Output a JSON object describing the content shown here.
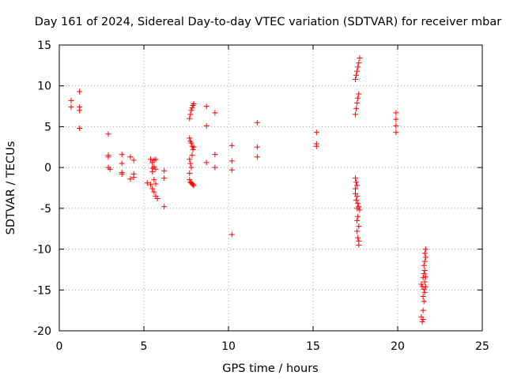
{
  "chart_data": {
    "type": "scatter",
    "title": "Day 161 of 2024, Sidereal Day-to-day VTEC variation (SDTVAR) for receiver mbar",
    "xlabel": "GPS time / hours",
    "ylabel": "SDTVAR / TECUs",
    "xlim": [
      0,
      25
    ],
    "ylim": [
      -20,
      15
    ],
    "xticks": [
      0,
      5,
      10,
      15,
      20,
      25
    ],
    "yticks": [
      -20,
      -15,
      -10,
      -5,
      0,
      5,
      10,
      15
    ],
    "xtick_labels": [
      "0",
      "5",
      "10",
      "15",
      "20",
      "25"
    ],
    "ytick_labels": [
      "-20",
      "-15",
      "-10",
      "-5",
      "0",
      "5",
      "10",
      "15"
    ],
    "grid": true,
    "marker": "+",
    "color": "#ff0000",
    "series": [
      {
        "name": "SDTVAR",
        "points": [
          [
            0.7,
            8.2
          ],
          [
            0.7,
            7.4
          ],
          [
            1.2,
            9.3
          ],
          [
            1.2,
            7.4
          ],
          [
            1.2,
            7.0
          ],
          [
            1.2,
            4.8
          ],
          [
            2.9,
            4.1
          ],
          [
            2.9,
            1.5
          ],
          [
            2.9,
            1.3
          ],
          [
            2.9,
            0.0
          ],
          [
            3.0,
            -0.2
          ],
          [
            3.7,
            1.6
          ],
          [
            3.7,
            0.5
          ],
          [
            3.7,
            -0.6
          ],
          [
            3.7,
            -0.8
          ],
          [
            4.2,
            1.3
          ],
          [
            4.2,
            -1.4
          ],
          [
            4.4,
            0.9
          ],
          [
            4.4,
            -0.8
          ],
          [
            4.4,
            -1.2
          ],
          [
            5.2,
            -1.9
          ],
          [
            5.4,
            -2.1
          ],
          [
            5.4,
            1.0
          ],
          [
            5.5,
            0.6
          ],
          [
            5.5,
            -0.1
          ],
          [
            5.5,
            -0.5
          ],
          [
            5.5,
            -2.6
          ],
          [
            5.6,
            0.9
          ],
          [
            5.6,
            0.1
          ],
          [
            5.6,
            -1.5
          ],
          [
            5.6,
            -3.0
          ],
          [
            5.7,
            1.0
          ],
          [
            5.7,
            -0.2
          ],
          [
            5.7,
            -2.0
          ],
          [
            5.7,
            -3.5
          ],
          [
            5.8,
            -3.8
          ],
          [
            6.2,
            -0.4
          ],
          [
            6.2,
            -1.3
          ],
          [
            6.2,
            -4.8
          ],
          [
            7.7,
            6.0
          ],
          [
            7.7,
            3.6
          ],
          [
            7.7,
            1.0
          ],
          [
            7.7,
            -0.7
          ],
          [
            7.7,
            -1.5
          ],
          [
            7.75,
            6.5
          ],
          [
            7.75,
            3.2
          ],
          [
            7.75,
            0.5
          ],
          [
            7.75,
            -1.8
          ],
          [
            7.8,
            7.0
          ],
          [
            7.8,
            3.0
          ],
          [
            7.8,
            0.0
          ],
          [
            7.8,
            -1.9
          ],
          [
            7.85,
            7.3
          ],
          [
            7.85,
            2.6
          ],
          [
            7.85,
            1.5
          ],
          [
            7.85,
            -2.0
          ],
          [
            7.9,
            7.6
          ],
          [
            7.9,
            2.2
          ],
          [
            7.9,
            -2.1
          ],
          [
            7.95,
            7.8
          ],
          [
            7.95,
            2.5
          ],
          [
            7.95,
            -2.2
          ],
          [
            8.7,
            7.5
          ],
          [
            8.7,
            5.1
          ],
          [
            8.7,
            0.6
          ],
          [
            9.2,
            6.7
          ],
          [
            9.2,
            1.6
          ],
          [
            9.2,
            0.0
          ],
          [
            10.2,
            2.7
          ],
          [
            10.2,
            0.8
          ],
          [
            10.2,
            -0.3
          ],
          [
            10.2,
            -8.2
          ],
          [
            11.7,
            5.5
          ],
          [
            11.7,
            2.5
          ],
          [
            11.7,
            1.3
          ],
          [
            15.2,
            4.3
          ],
          [
            15.2,
            2.9
          ],
          [
            15.2,
            2.6
          ],
          [
            17.5,
            10.8
          ],
          [
            17.5,
            6.5
          ],
          [
            17.5,
            -1.3
          ],
          [
            17.5,
            -2.6
          ],
          [
            17.5,
            -3.2
          ],
          [
            17.55,
            11.3
          ],
          [
            17.55,
            7.2
          ],
          [
            17.55,
            -1.8
          ],
          [
            17.55,
            -4.0
          ],
          [
            17.6,
            11.8
          ],
          [
            17.6,
            7.9
          ],
          [
            17.6,
            -2.2
          ],
          [
            17.6,
            -3.5
          ],
          [
            17.6,
            -5.0
          ],
          [
            17.6,
            -6.5
          ],
          [
            17.6,
            -7.8
          ],
          [
            17.65,
            12.3
          ],
          [
            17.65,
            8.5
          ],
          [
            17.65,
            -4.4
          ],
          [
            17.65,
            -6.0
          ],
          [
            17.65,
            -8.6
          ],
          [
            17.7,
            12.8
          ],
          [
            17.7,
            9.0
          ],
          [
            17.7,
            -4.8
          ],
          [
            17.7,
            -7.2
          ],
          [
            17.7,
            -9.0
          ],
          [
            17.7,
            -9.5
          ],
          [
            17.75,
            13.4
          ],
          [
            17.75,
            -5.2
          ],
          [
            19.9,
            6.7
          ],
          [
            19.9,
            5.9
          ],
          [
            19.9,
            5.1
          ],
          [
            19.9,
            4.3
          ],
          [
            21.4,
            -14.3
          ],
          [
            21.4,
            -18.3
          ],
          [
            21.45,
            -14.6
          ],
          [
            21.45,
            -18.9
          ],
          [
            21.5,
            -13.5
          ],
          [
            21.5,
            -15.8
          ],
          [
            21.5,
            -17.5
          ],
          [
            21.5,
            -18.6
          ],
          [
            21.55,
            -12.0
          ],
          [
            21.55,
            -13.0
          ],
          [
            21.55,
            -14.9
          ],
          [
            21.55,
            -16.4
          ],
          [
            21.6,
            -10.5
          ],
          [
            21.6,
            -11.5
          ],
          [
            21.6,
            -12.6
          ],
          [
            21.6,
            -14.0
          ],
          [
            21.6,
            -15.3
          ],
          [
            21.65,
            -10.0
          ],
          [
            21.65,
            -11.0
          ],
          [
            21.65,
            -13.4
          ],
          [
            21.65,
            -14.6
          ]
        ]
      }
    ]
  }
}
